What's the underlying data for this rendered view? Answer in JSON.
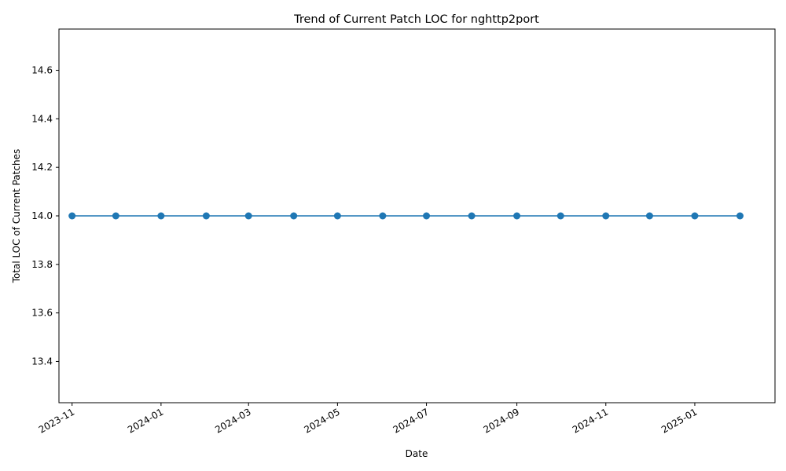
{
  "chart_data": {
    "type": "line",
    "title": "Trend of Current Patch LOC for nghttp2port",
    "xlabel": "Date",
    "ylabel": "Total LOC of Current Patches",
    "x_tick_labels": [
      "2023-11",
      "2024-01",
      "2024-03",
      "2024-05",
      "2024-07",
      "2024-09",
      "2024-11",
      "2025-01"
    ],
    "y_tick_labels": [
      "13.4",
      "13.6",
      "13.8",
      "14.0",
      "14.2",
      "14.4",
      "14.6"
    ],
    "ylim": [
      13.23,
      14.77
    ],
    "xlim": [
      "2023-10-23",
      "2025-02-25"
    ],
    "grid": false,
    "legend": "none",
    "series": [
      {
        "color": "#1f77b4",
        "marker": "circle",
        "x": [
          "2023-11-01",
          "2023-12-01",
          "2024-01-01",
          "2024-02-01",
          "2024-03-01",
          "2024-04-01",
          "2024-05-01",
          "2024-06-01",
          "2024-07-01",
          "2024-08-01",
          "2024-09-01",
          "2024-10-01",
          "2024-11-01",
          "2024-12-01",
          "2025-01-01",
          "2025-02-01"
        ],
        "values": [
          14,
          14,
          14,
          14,
          14,
          14,
          14,
          14,
          14,
          14,
          14,
          14,
          14,
          14,
          14,
          14
        ]
      }
    ]
  }
}
